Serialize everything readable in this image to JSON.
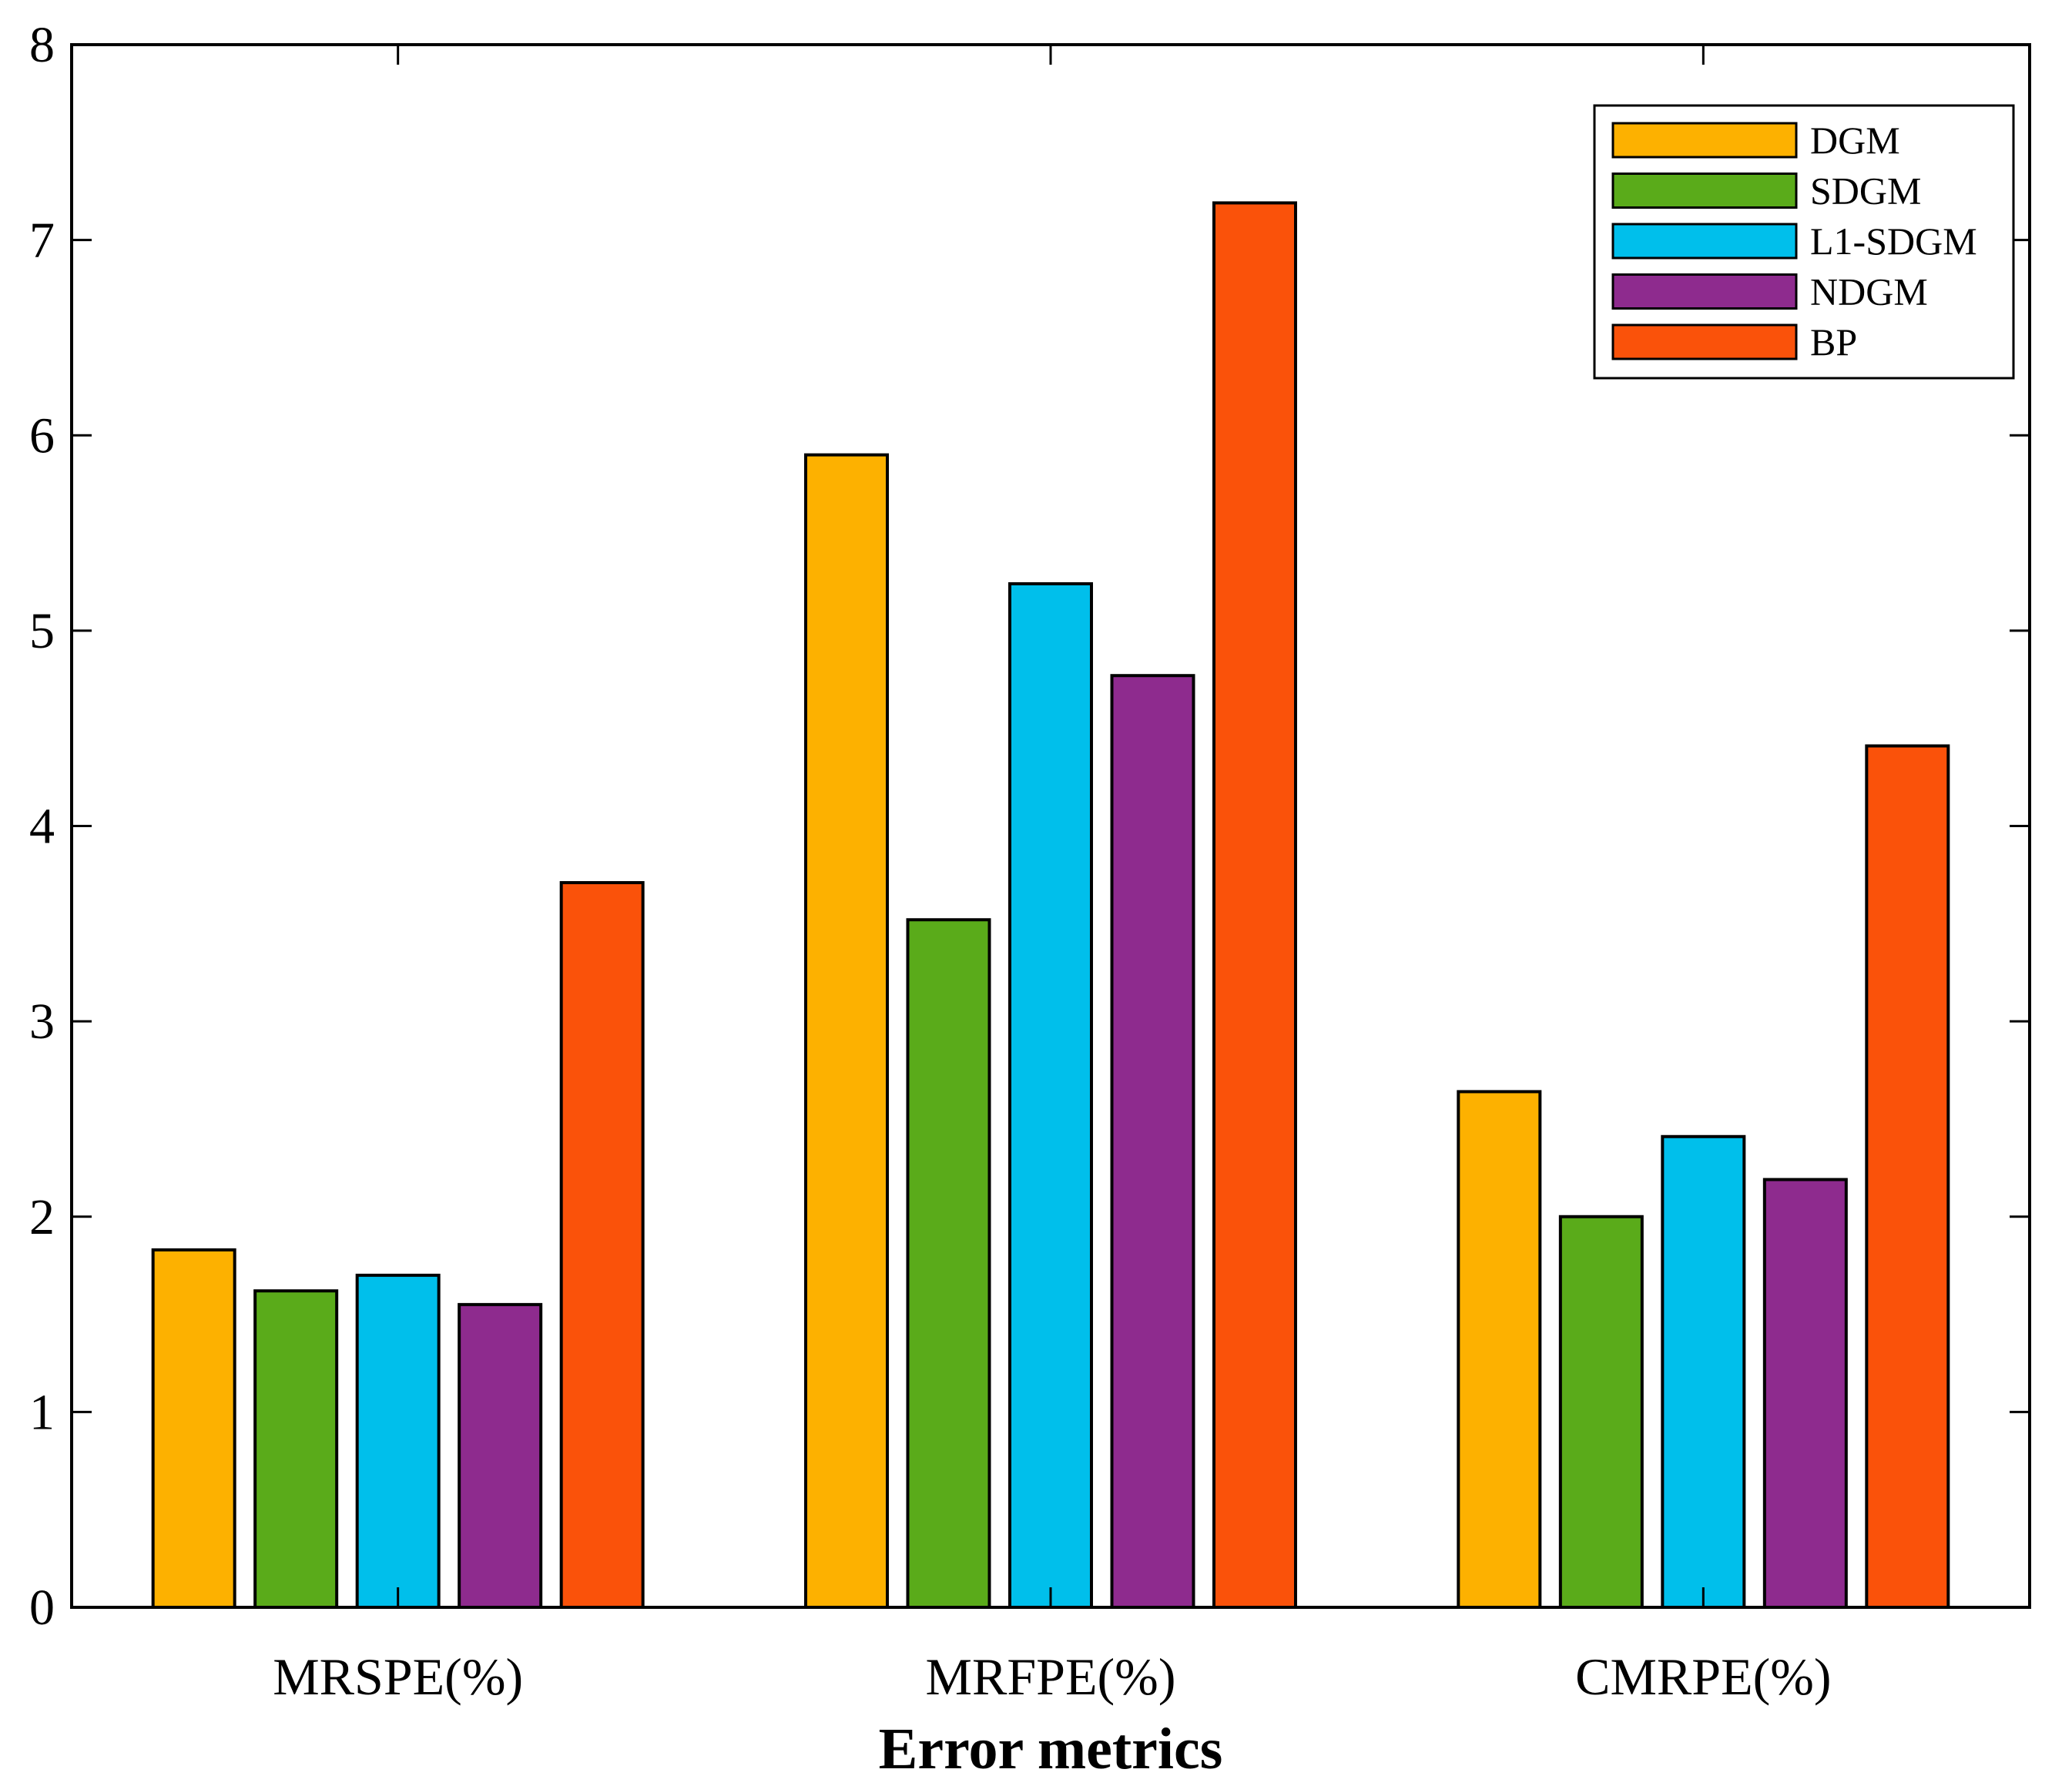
{
  "chart_data": {
    "type": "bar",
    "title": "",
    "xlabel": "Error metrics",
    "ylabel": "",
    "categories": [
      "MRSPE(%)",
      "MRFPE(%)",
      "CMRPE(%)"
    ],
    "ylim": [
      0,
      8
    ],
    "yticks": [
      "0",
      "1",
      "2",
      "3",
      "4",
      "5",
      "6",
      "7",
      "8"
    ],
    "grid": false,
    "legend_position": "top-right",
    "series": [
      {
        "name": "DGM",
        "color": "#FDB100",
        "values": [
          1.83,
          5.9,
          2.64
        ]
      },
      {
        "name": "SDGM",
        "color": "#5AAB1A",
        "values": [
          1.62,
          3.52,
          2.0
        ]
      },
      {
        "name": "L1-SDGM",
        "color": "#00BFEB",
        "values": [
          1.7,
          5.24,
          2.41
        ]
      },
      {
        "name": "NDGM",
        "color": "#8E2B8E",
        "values": [
          1.55,
          4.77,
          2.19
        ]
      },
      {
        "name": "BP",
        "color": "#FA520A",
        "values": [
          3.71,
          7.19,
          4.41
        ]
      }
    ]
  }
}
